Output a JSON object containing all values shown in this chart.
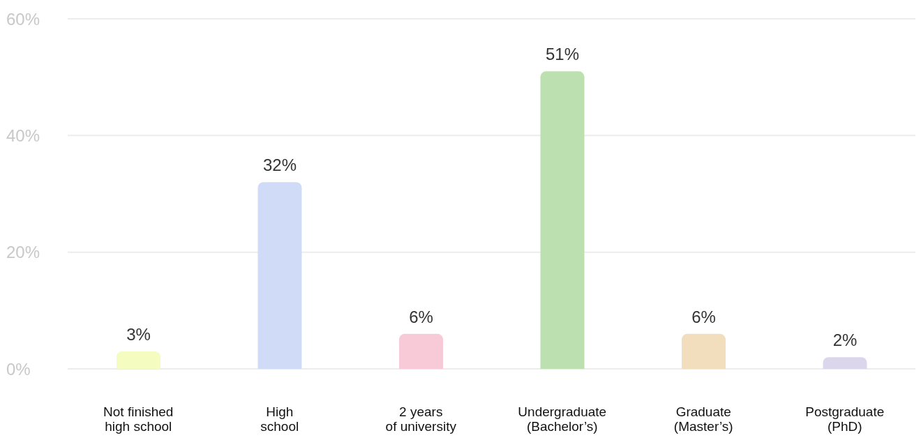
{
  "chart_data": {
    "type": "bar",
    "categories": [
      "Not finished\nhigh school",
      "High\nschool",
      "2 years\nof university",
      "Undergraduate\n(Bachelor’s)",
      "Graduate\n(Master’s)",
      "Postgraduate\n(PhD)"
    ],
    "values": [
      3,
      32,
      6,
      51,
      6,
      2
    ],
    "colors": [
      "#f5fcc0",
      "#d0dbf7",
      "#f8c9d6",
      "#bde0b0",
      "#f2ddbc",
      "#dcd6ec"
    ],
    "value_labels": [
      "3%",
      "32%",
      "6%",
      "51%",
      "6%",
      "2%"
    ],
    "ylim": [
      0,
      60
    ],
    "yticks": [
      {
        "value": 0,
        "label": "0%"
      },
      {
        "value": 20,
        "label": "20%"
      },
      {
        "value": 40,
        "label": "40%"
      },
      {
        "value": 60,
        "label": "60%"
      }
    ],
    "grid": "y"
  }
}
